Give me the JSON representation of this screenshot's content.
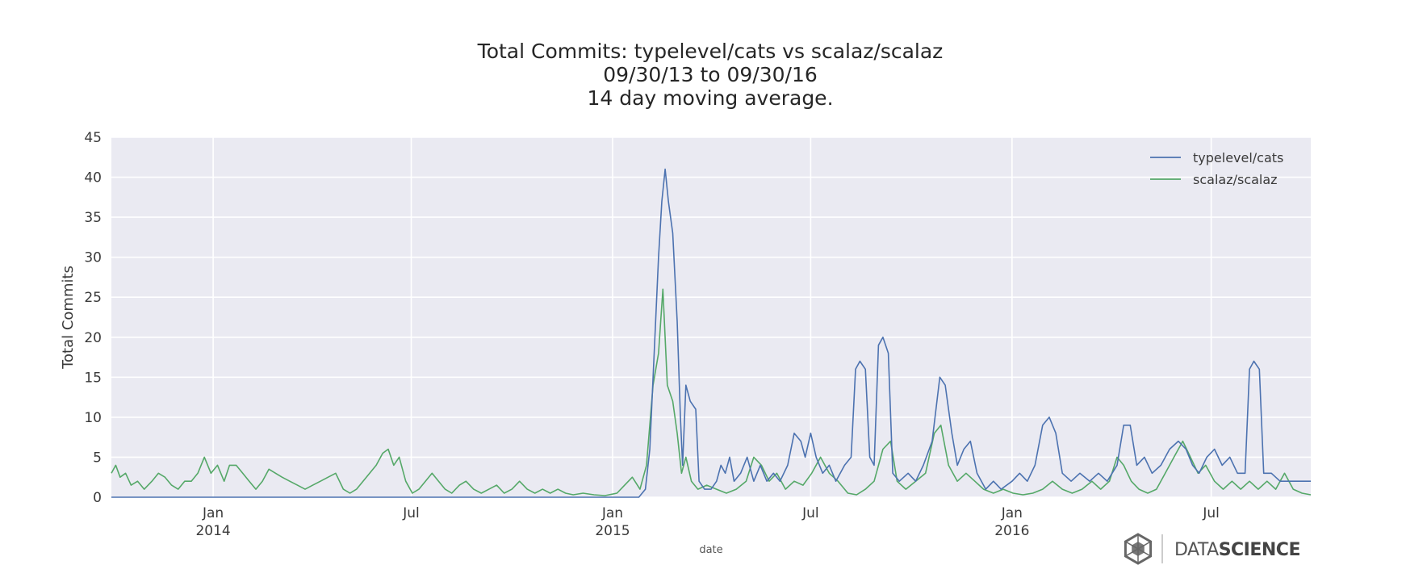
{
  "chart_data": {
    "type": "line",
    "title_lines": [
      "Total Commits: typelevel/cats vs scalaz/scalaz",
      "09/30/13 to 09/30/16",
      "14 day moving average."
    ],
    "xlabel": "date",
    "ylabel": "Total Commits",
    "ylim": [
      0,
      45
    ],
    "xlim": [
      "2013-09-30",
      "2016-09-30"
    ],
    "y_ticks": [
      0,
      5,
      10,
      15,
      20,
      25,
      30,
      35,
      40,
      45
    ],
    "x_ticks": [
      {
        "date": "2014-01-01",
        "line1": "Jan",
        "line2": "2014"
      },
      {
        "date": "2014-07-01",
        "line1": "Jul",
        "line2": ""
      },
      {
        "date": "2015-01-01",
        "line1": "Jan",
        "line2": "2015"
      },
      {
        "date": "2015-07-01",
        "line1": "Jul",
        "line2": ""
      },
      {
        "date": "2016-01-01",
        "line1": "Jan",
        "line2": "2016"
      },
      {
        "date": "2016-07-01",
        "line1": "Jul",
        "line2": ""
      }
    ],
    "grid": true,
    "legend_position": "top-right",
    "series": [
      {
        "name": "typelevel/cats",
        "color": "#4c72b0",
        "points": [
          [
            "2013-09-30",
            0
          ],
          [
            "2015-01-25",
            0
          ],
          [
            "2015-01-31",
            1
          ],
          [
            "2015-02-04",
            6
          ],
          [
            "2015-02-08",
            18
          ],
          [
            "2015-02-12",
            30
          ],
          [
            "2015-02-15",
            37
          ],
          [
            "2015-02-18",
            41
          ],
          [
            "2015-02-21",
            37
          ],
          [
            "2015-02-25",
            33
          ],
          [
            "2015-03-01",
            22
          ],
          [
            "2015-03-04",
            10
          ],
          [
            "2015-03-06",
            4
          ],
          [
            "2015-03-09",
            14
          ],
          [
            "2015-03-13",
            12
          ],
          [
            "2015-03-18",
            11
          ],
          [
            "2015-03-21",
            2
          ],
          [
            "2015-03-26",
            1
          ],
          [
            "2015-04-01",
            1
          ],
          [
            "2015-04-06",
            2
          ],
          [
            "2015-04-10",
            4
          ],
          [
            "2015-04-14",
            3
          ],
          [
            "2015-04-18",
            5
          ],
          [
            "2015-04-22",
            2
          ],
          [
            "2015-04-28",
            3
          ],
          [
            "2015-05-04",
            5
          ],
          [
            "2015-05-10",
            2
          ],
          [
            "2015-05-16",
            4
          ],
          [
            "2015-05-22",
            2
          ],
          [
            "2015-05-28",
            3
          ],
          [
            "2015-06-03",
            2
          ],
          [
            "2015-06-10",
            4
          ],
          [
            "2015-06-16",
            8
          ],
          [
            "2015-06-22",
            7
          ],
          [
            "2015-06-26",
            5
          ],
          [
            "2015-07-01",
            8
          ],
          [
            "2015-07-06",
            5
          ],
          [
            "2015-07-12",
            3
          ],
          [
            "2015-07-18",
            4
          ],
          [
            "2015-07-24",
            2
          ],
          [
            "2015-08-01",
            4
          ],
          [
            "2015-08-07",
            5
          ],
          [
            "2015-08-11",
            16
          ],
          [
            "2015-08-15",
            17
          ],
          [
            "2015-08-20",
            16
          ],
          [
            "2015-08-24",
            5
          ],
          [
            "2015-08-28",
            4
          ],
          [
            "2015-09-01",
            19
          ],
          [
            "2015-09-05",
            20
          ],
          [
            "2015-09-10",
            18
          ],
          [
            "2015-09-14",
            3
          ],
          [
            "2015-09-20",
            2
          ],
          [
            "2015-09-28",
            3
          ],
          [
            "2015-10-05",
            2
          ],
          [
            "2015-10-12",
            4
          ],
          [
            "2015-10-20",
            7
          ],
          [
            "2015-10-27",
            15
          ],
          [
            "2015-11-01",
            14
          ],
          [
            "2015-11-07",
            8
          ],
          [
            "2015-11-12",
            4
          ],
          [
            "2015-11-18",
            6
          ],
          [
            "2015-11-24",
            7
          ],
          [
            "2015-11-30",
            3
          ],
          [
            "2015-12-08",
            1
          ],
          [
            "2015-12-15",
            2
          ],
          [
            "2015-12-22",
            1
          ],
          [
            "2016-01-01",
            2
          ],
          [
            "2016-01-08",
            3
          ],
          [
            "2016-01-15",
            2
          ],
          [
            "2016-01-22",
            4
          ],
          [
            "2016-01-29",
            9
          ],
          [
            "2016-02-04",
            10
          ],
          [
            "2016-02-10",
            8
          ],
          [
            "2016-02-16",
            3
          ],
          [
            "2016-02-24",
            2
          ],
          [
            "2016-03-03",
            3
          ],
          [
            "2016-03-12",
            2
          ],
          [
            "2016-03-20",
            3
          ],
          [
            "2016-03-28",
            2
          ],
          [
            "2016-04-06",
            4
          ],
          [
            "2016-04-12",
            9
          ],
          [
            "2016-04-18",
            9
          ],
          [
            "2016-04-24",
            4
          ],
          [
            "2016-05-01",
            5
          ],
          [
            "2016-05-08",
            3
          ],
          [
            "2016-05-16",
            4
          ],
          [
            "2016-05-24",
            6
          ],
          [
            "2016-06-01",
            7
          ],
          [
            "2016-06-08",
            6
          ],
          [
            "2016-06-14",
            4
          ],
          [
            "2016-06-20",
            3
          ],
          [
            "2016-06-27",
            5
          ],
          [
            "2016-07-04",
            6
          ],
          [
            "2016-07-11",
            4
          ],
          [
            "2016-07-18",
            5
          ],
          [
            "2016-07-25",
            3
          ],
          [
            "2016-08-01",
            3
          ],
          [
            "2016-08-05",
            16
          ],
          [
            "2016-08-09",
            17
          ],
          [
            "2016-08-14",
            16
          ],
          [
            "2016-08-18",
            3
          ],
          [
            "2016-08-25",
            3
          ],
          [
            "2016-09-02",
            2
          ],
          [
            "2016-09-10",
            2
          ],
          [
            "2016-09-20",
            2
          ],
          [
            "2016-09-30",
            2
          ]
        ]
      },
      {
        "name": "scalaz/scalaz",
        "color": "#55a868",
        "points": [
          [
            "2013-09-30",
            3
          ],
          [
            "2013-10-04",
            4
          ],
          [
            "2013-10-08",
            2.5
          ],
          [
            "2013-10-13",
            3
          ],
          [
            "2013-10-18",
            1.5
          ],
          [
            "2013-10-24",
            2
          ],
          [
            "2013-10-30",
            1
          ],
          [
            "2013-11-06",
            2
          ],
          [
            "2013-11-12",
            3
          ],
          [
            "2013-11-18",
            2.5
          ],
          [
            "2013-11-24",
            1.5
          ],
          [
            "2013-11-30",
            1
          ],
          [
            "2013-12-06",
            2
          ],
          [
            "2013-12-12",
            2
          ],
          [
            "2013-12-18",
            3
          ],
          [
            "2013-12-24",
            5
          ],
          [
            "2013-12-30",
            3
          ],
          [
            "2014-01-05",
            4
          ],
          [
            "2014-01-11",
            2
          ],
          [
            "2014-01-16",
            4
          ],
          [
            "2014-01-22",
            4
          ],
          [
            "2014-01-28",
            3
          ],
          [
            "2014-02-03",
            2
          ],
          [
            "2014-02-09",
            1
          ],
          [
            "2014-02-15",
            2
          ],
          [
            "2014-02-21",
            3.5
          ],
          [
            "2014-02-27",
            3
          ],
          [
            "2014-03-05",
            2.5
          ],
          [
            "2014-03-12",
            2
          ],
          [
            "2014-03-19",
            1.5
          ],
          [
            "2014-03-26",
            1
          ],
          [
            "2014-04-02",
            1.5
          ],
          [
            "2014-04-09",
            2
          ],
          [
            "2014-04-16",
            2.5
          ],
          [
            "2014-04-23",
            3
          ],
          [
            "2014-04-30",
            1
          ],
          [
            "2014-05-06",
            0.5
          ],
          [
            "2014-05-12",
            1
          ],
          [
            "2014-05-18",
            2
          ],
          [
            "2014-05-24",
            3
          ],
          [
            "2014-05-30",
            4
          ],
          [
            "2014-06-05",
            5.5
          ],
          [
            "2014-06-10",
            6
          ],
          [
            "2014-06-15",
            4
          ],
          [
            "2014-06-20",
            5
          ],
          [
            "2014-06-26",
            2
          ],
          [
            "2014-07-02",
            0.5
          ],
          [
            "2014-07-08",
            1
          ],
          [
            "2014-07-14",
            2
          ],
          [
            "2014-07-20",
            3
          ],
          [
            "2014-07-26",
            2
          ],
          [
            "2014-08-01",
            1
          ],
          [
            "2014-08-07",
            0.5
          ],
          [
            "2014-08-14",
            1.5
          ],
          [
            "2014-08-20",
            2
          ],
          [
            "2014-08-27",
            1
          ],
          [
            "2014-09-03",
            0.5
          ],
          [
            "2014-09-10",
            1
          ],
          [
            "2014-09-17",
            1.5
          ],
          [
            "2014-09-24",
            0.5
          ],
          [
            "2014-10-01",
            1
          ],
          [
            "2014-10-08",
            2
          ],
          [
            "2014-10-15",
            1
          ],
          [
            "2014-10-22",
            0.5
          ],
          [
            "2014-10-29",
            1
          ],
          [
            "2014-11-05",
            0.5
          ],
          [
            "2014-11-12",
            1
          ],
          [
            "2014-11-19",
            0.5
          ],
          [
            "2014-11-26",
            0.3
          ],
          [
            "2014-12-05",
            0.5
          ],
          [
            "2014-12-15",
            0.3
          ],
          [
            "2014-12-25",
            0.2
          ],
          [
            "2015-01-05",
            0.5
          ],
          [
            "2015-01-12",
            1.5
          ],
          [
            "2015-01-19",
            2.5
          ],
          [
            "2015-01-26",
            1
          ],
          [
            "2015-02-01",
            4
          ],
          [
            "2015-02-07",
            14
          ],
          [
            "2015-02-12",
            18
          ],
          [
            "2015-02-16",
            26
          ],
          [
            "2015-02-20",
            14
          ],
          [
            "2015-02-25",
            12
          ],
          [
            "2015-03-01",
            8
          ],
          [
            "2015-03-05",
            3
          ],
          [
            "2015-03-09",
            5
          ],
          [
            "2015-03-14",
            2
          ],
          [
            "2015-03-20",
            1
          ],
          [
            "2015-03-28",
            1.5
          ],
          [
            "2015-04-06",
            1
          ],
          [
            "2015-04-15",
            0.5
          ],
          [
            "2015-04-24",
            1
          ],
          [
            "2015-05-03",
            2
          ],
          [
            "2015-05-10",
            5
          ],
          [
            "2015-05-17",
            4
          ],
          [
            "2015-05-24",
            2
          ],
          [
            "2015-05-31",
            3
          ],
          [
            "2015-06-08",
            1
          ],
          [
            "2015-06-16",
            2
          ],
          [
            "2015-06-24",
            1.5
          ],
          [
            "2015-07-02",
            3
          ],
          [
            "2015-07-10",
            5
          ],
          [
            "2015-07-18",
            3
          ],
          [
            "2015-07-26",
            2
          ],
          [
            "2015-08-04",
            0.5
          ],
          [
            "2015-08-12",
            0.3
          ],
          [
            "2015-08-20",
            1
          ],
          [
            "2015-08-28",
            2
          ],
          [
            "2015-09-05",
            6
          ],
          [
            "2015-09-12",
            7
          ],
          [
            "2015-09-18",
            2
          ],
          [
            "2015-09-26",
            1
          ],
          [
            "2015-10-05",
            2
          ],
          [
            "2015-10-14",
            3
          ],
          [
            "2015-10-22",
            8
          ],
          [
            "2015-10-28",
            9
          ],
          [
            "2015-11-04",
            4
          ],
          [
            "2015-11-12",
            2
          ],
          [
            "2015-11-20",
            3
          ],
          [
            "2015-11-28",
            2
          ],
          [
            "2015-12-06",
            1
          ],
          [
            "2015-12-15",
            0.5
          ],
          [
            "2015-12-24",
            1
          ],
          [
            "2016-01-02",
            0.5
          ],
          [
            "2016-01-11",
            0.3
          ],
          [
            "2016-01-20",
            0.5
          ],
          [
            "2016-01-29",
            1
          ],
          [
            "2016-02-07",
            2
          ],
          [
            "2016-02-16",
            1
          ],
          [
            "2016-02-25",
            0.5
          ],
          [
            "2016-03-05",
            1
          ],
          [
            "2016-03-14",
            2
          ],
          [
            "2016-03-22",
            1
          ],
          [
            "2016-03-30",
            2
          ],
          [
            "2016-04-06",
            5
          ],
          [
            "2016-04-12",
            4
          ],
          [
            "2016-04-19",
            2
          ],
          [
            "2016-04-26",
            1
          ],
          [
            "2016-05-04",
            0.5
          ],
          [
            "2016-05-12",
            1
          ],
          [
            "2016-05-20",
            3
          ],
          [
            "2016-05-28",
            5
          ],
          [
            "2016-06-05",
            7
          ],
          [
            "2016-06-12",
            5
          ],
          [
            "2016-06-19",
            3
          ],
          [
            "2016-06-26",
            4
          ],
          [
            "2016-07-04",
            2
          ],
          [
            "2016-07-12",
            1
          ],
          [
            "2016-07-20",
            2
          ],
          [
            "2016-07-28",
            1
          ],
          [
            "2016-08-05",
            2
          ],
          [
            "2016-08-13",
            1
          ],
          [
            "2016-08-21",
            2
          ],
          [
            "2016-08-29",
            1
          ],
          [
            "2016-09-06",
            3
          ],
          [
            "2016-09-14",
            1
          ],
          [
            "2016-09-22",
            0.5
          ],
          [
            "2016-09-30",
            0.3
          ]
        ]
      }
    ]
  },
  "watermark": {
    "brand_light": "DATA",
    "brand_bold": "SCIENCE"
  }
}
